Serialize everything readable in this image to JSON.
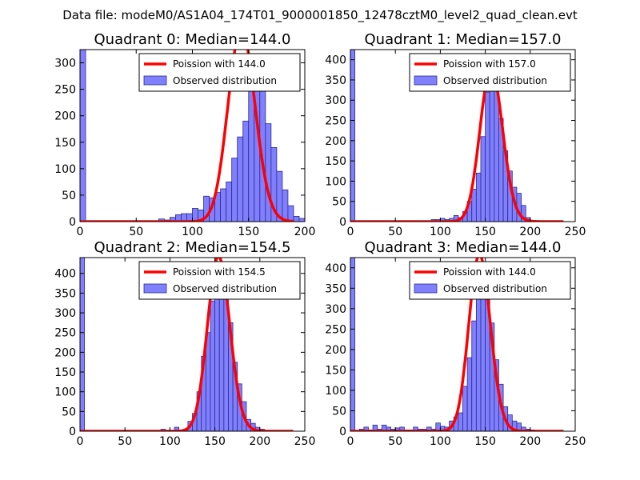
{
  "figure": {
    "suptitle": "Data file: modeM0/AS1A04_174T01_9000001850_12478cztM0_level2_quad_clean.evt"
  },
  "colors": {
    "bar_fill": "#8080ff",
    "bar_edge": "#2a2a8a",
    "fit_line": "#ff0000"
  },
  "chart_data": [
    {
      "type": "bar",
      "title": "Quadrant 0: Median=144.0",
      "median": 144.0,
      "xlim": [
        0,
        200
      ],
      "ylim": [
        0,
        325
      ],
      "xticks": [
        0,
        50,
        100,
        150,
        200
      ],
      "yticks": [
        0,
        50,
        100,
        150,
        200,
        250,
        300
      ],
      "bin_width": 5,
      "bins": [
        [
          0,
          325
        ],
        [
          5,
          0
        ],
        [
          10,
          0
        ],
        [
          15,
          0
        ],
        [
          20,
          0
        ],
        [
          25,
          0
        ],
        [
          30,
          0
        ],
        [
          35,
          0
        ],
        [
          40,
          0
        ],
        [
          45,
          0
        ],
        [
          50,
          0
        ],
        [
          55,
          0
        ],
        [
          60,
          0
        ],
        [
          65,
          0
        ],
        [
          70,
          5
        ],
        [
          75,
          3
        ],
        [
          80,
          8
        ],
        [
          85,
          13
        ],
        [
          90,
          15
        ],
        [
          95,
          15
        ],
        [
          100,
          25
        ],
        [
          105,
          22
        ],
        [
          110,
          48
        ],
        [
          115,
          45
        ],
        [
          120,
          55
        ],
        [
          125,
          62
        ],
        [
          130,
          75
        ],
        [
          135,
          120
        ],
        [
          140,
          160
        ],
        [
          145,
          190
        ],
        [
          150,
          255
        ],
        [
          155,
          300
        ],
        [
          160,
          250
        ],
        [
          165,
          185
        ],
        [
          170,
          140
        ],
        [
          175,
          95
        ],
        [
          180,
          60
        ],
        [
          185,
          30
        ],
        [
          190,
          10
        ],
        [
          195,
          6
        ]
      ],
      "legend": [
        "Poission with 144.0",
        "Observed distribution"
      ]
    },
    {
      "type": "bar",
      "title": "Quadrant 1: Median=157.0",
      "median": 157.0,
      "xlim": [
        0,
        250
      ],
      "ylim": [
        0,
        425
      ],
      "xticks": [
        0,
        50,
        100,
        150,
        200,
        250
      ],
      "yticks": [
        0,
        50,
        100,
        150,
        200,
        250,
        300,
        350,
        400
      ],
      "bin_width": 5,
      "bins": [
        [
          0,
          425
        ],
        [
          90,
          5
        ],
        [
          95,
          5
        ],
        [
          100,
          8
        ],
        [
          105,
          5
        ],
        [
          110,
          8
        ],
        [
          115,
          15
        ],
        [
          120,
          10
        ],
        [
          125,
          25
        ],
        [
          130,
          50
        ],
        [
          135,
          80
        ],
        [
          140,
          120
        ],
        [
          145,
          210
        ],
        [
          150,
          320
        ],
        [
          155,
          400
        ],
        [
          160,
          355
        ],
        [
          165,
          255
        ],
        [
          170,
          175
        ],
        [
          175,
          125
        ],
        [
          180,
          85
        ],
        [
          185,
          70
        ],
        [
          190,
          40
        ],
        [
          195,
          10
        ],
        [
          200,
          3
        ]
      ],
      "legend": [
        "Poission with 157.0",
        "Observed distribution"
      ]
    },
    {
      "type": "bar",
      "title": "Quadrant 2: Median=154.5",
      "median": 154.5,
      "xlim": [
        0,
        250
      ],
      "ylim": [
        0,
        440
      ],
      "xticks": [
        0,
        50,
        100,
        150,
        200,
        250
      ],
      "yticks": [
        0,
        50,
        100,
        150,
        200,
        250,
        300,
        350,
        400
      ],
      "bin_width": 5,
      "bins": [
        [
          0,
          440
        ],
        [
          90,
          5
        ],
        [
          105,
          10
        ],
        [
          110,
          3
        ],
        [
          115,
          5
        ],
        [
          120,
          25
        ],
        [
          125,
          45
        ],
        [
          130,
          100
        ],
        [
          135,
          190
        ],
        [
          140,
          250
        ],
        [
          145,
          330
        ],
        [
          150,
          390
        ],
        [
          155,
          355
        ],
        [
          160,
          345
        ],
        [
          165,
          275
        ],
        [
          170,
          175
        ],
        [
          175,
          120
        ],
        [
          180,
          75
        ],
        [
          185,
          30
        ],
        [
          190,
          20
        ],
        [
          195,
          10
        ],
        [
          200,
          5
        ]
      ],
      "legend": [
        "Poission with 154.5",
        "Observed distribution"
      ]
    },
    {
      "type": "bar",
      "title": "Quadrant 3: Median=144.0",
      "median": 144.0,
      "xlim": [
        0,
        250
      ],
      "ylim": [
        0,
        425
      ],
      "xticks": [
        0,
        50,
        100,
        150,
        200,
        250
      ],
      "yticks": [
        0,
        50,
        100,
        150,
        200,
        250,
        300,
        350,
        400
      ],
      "bin_width": 5,
      "bins": [
        [
          0,
          425
        ],
        [
          10,
          5
        ],
        [
          15,
          10
        ],
        [
          20,
          3
        ],
        [
          25,
          15
        ],
        [
          30,
          5
        ],
        [
          35,
          15
        ],
        [
          40,
          10
        ],
        [
          45,
          5
        ],
        [
          50,
          8
        ],
        [
          55,
          10
        ],
        [
          60,
          3
        ],
        [
          65,
          3
        ],
        [
          70,
          10
        ],
        [
          75,
          5
        ],
        [
          80,
          5
        ],
        [
          85,
          10
        ],
        [
          90,
          5
        ],
        [
          95,
          20
        ],
        [
          100,
          12
        ],
        [
          105,
          10
        ],
        [
          110,
          25
        ],
        [
          115,
          35
        ],
        [
          120,
          45
        ],
        [
          125,
          110
        ],
        [
          130,
          180
        ],
        [
          135,
          270
        ],
        [
          140,
          330
        ],
        [
          145,
          395
        ],
        [
          150,
          325
        ],
        [
          155,
          265
        ],
        [
          160,
          175
        ],
        [
          165,
          115
        ],
        [
          170,
          60
        ],
        [
          175,
          40
        ],
        [
          180,
          25
        ],
        [
          185,
          20
        ],
        [
          190,
          10
        ],
        [
          195,
          5
        ],
        [
          200,
          3
        ]
      ],
      "legend": [
        "Poission with 144.0",
        "Observed distribution"
      ]
    }
  ]
}
